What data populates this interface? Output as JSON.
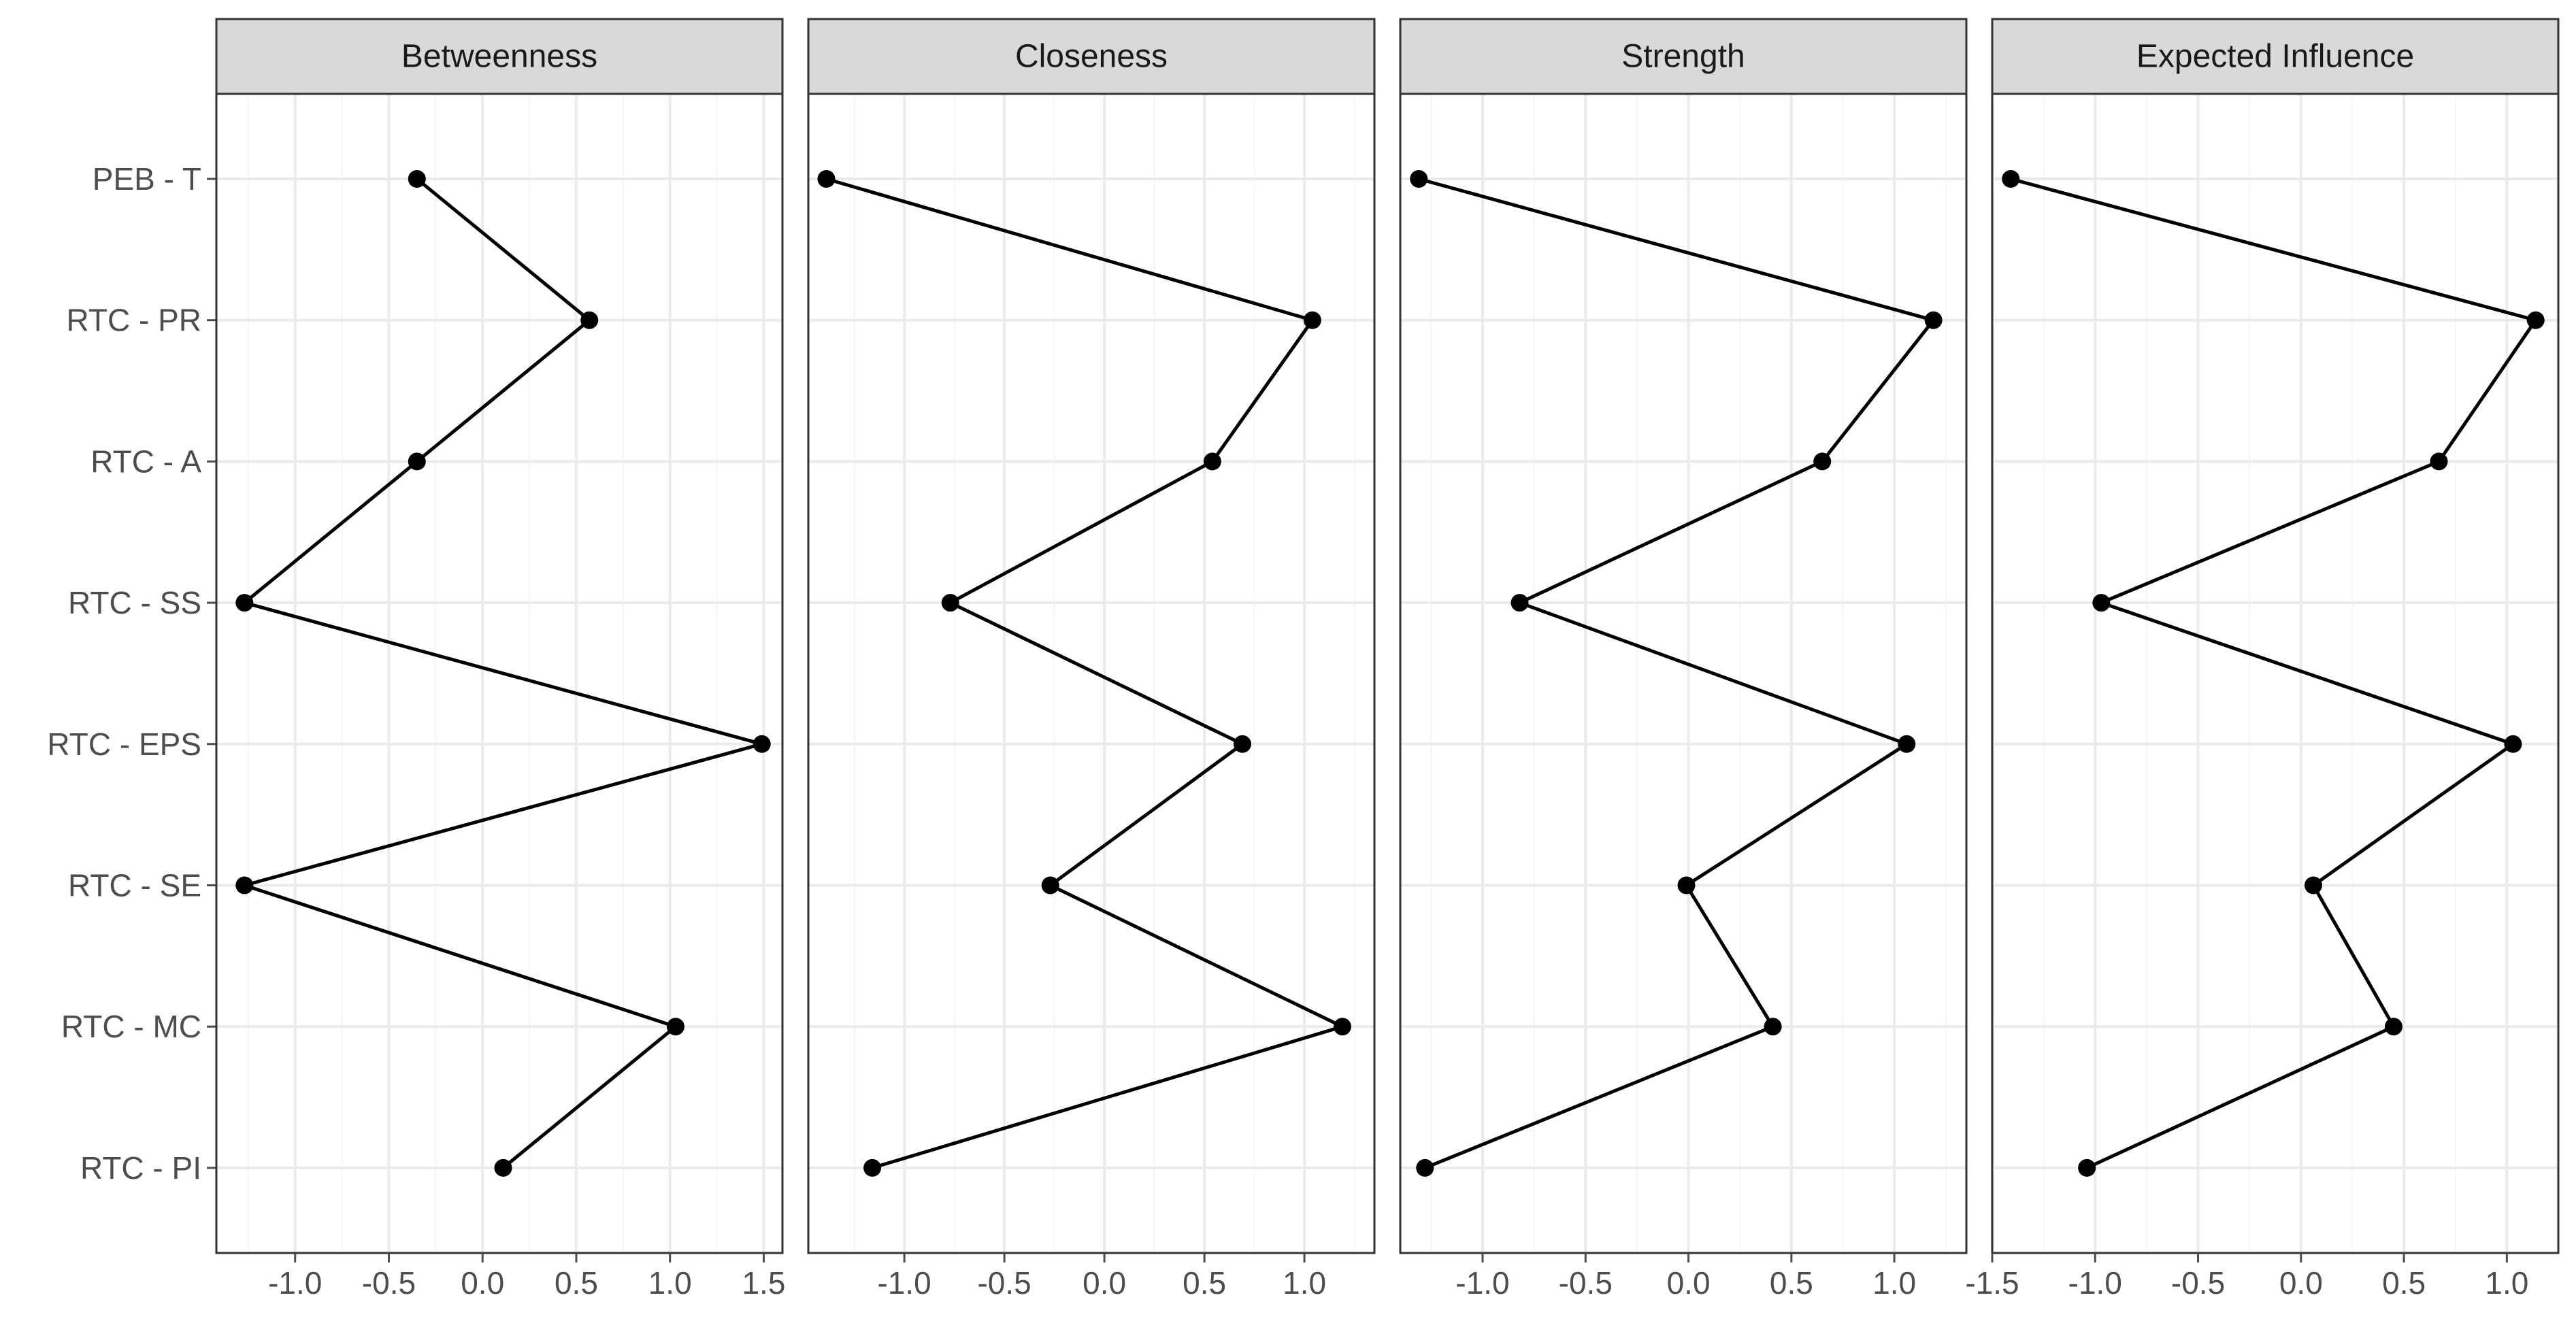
{
  "chart_data": {
    "type": "line",
    "orientation": "horizontal-values",
    "y_categories": [
      "PEB - T",
      "RTC - PR",
      "RTC - A",
      "RTC - SS",
      "RTC - EPS",
      "RTC - SE",
      "RTC - MC",
      "RTC - PI"
    ],
    "panels": [
      {
        "title": "Betweenness",
        "xlim": [
          -1.42,
          1.6
        ],
        "ticks": [
          -1.0,
          -0.5,
          0.0,
          0.5,
          1.0,
          1.5
        ],
        "tick_labels": [
          "-1.0",
          "-0.5",
          "0.0",
          "0.5",
          "1.0",
          "1.5"
        ],
        "values": [
          -0.35,
          0.57,
          -0.35,
          -1.27,
          1.49,
          -1.27,
          1.03,
          0.11
        ]
      },
      {
        "title": "Closeness",
        "xlim": [
          -1.48,
          1.35
        ],
        "ticks": [
          -1.0,
          -0.5,
          0.0,
          0.5,
          1.0
        ],
        "tick_labels": [
          "-1.0",
          "-0.5",
          "0.0",
          "0.5",
          "1.0"
        ],
        "values": [
          -1.39,
          1.04,
          0.54,
          -0.77,
          0.69,
          -0.27,
          1.19,
          -1.16
        ]
      },
      {
        "title": "Strength",
        "xlim": [
          -1.4,
          1.35
        ],
        "ticks": [
          -1.0,
          -0.5,
          0.0,
          0.5,
          1.0
        ],
        "tick_labels": [
          "-1.0",
          "-0.5",
          "0.0",
          "0.5",
          "1.0"
        ],
        "values": [
          -1.31,
          1.19,
          0.65,
          -0.82,
          1.06,
          -0.01,
          0.41,
          -1.28
        ]
      },
      {
        "title": "Expected Influence",
        "xlim": [
          -1.5,
          1.25
        ],
        "ticks": [
          -1.5,
          -1.0,
          -0.5,
          0.0,
          0.5,
          1.0
        ],
        "tick_labels": [
          "-1.5",
          "-1.0",
          "-0.5",
          "0.0",
          "0.5",
          "1.0"
        ],
        "values": [
          -1.41,
          1.14,
          0.67,
          -0.97,
          1.03,
          0.06,
          0.45,
          -1.04
        ]
      }
    ],
    "grid": true,
    "legend": "none",
    "colors": {
      "line": "#000000",
      "point": "#000000",
      "strip_fill": "#d9d9d9",
      "strip_border": "#333333",
      "panel_border": "#333333",
      "grid_major": "#ebebeb",
      "grid_minor": "#f5f5f5",
      "axis_text": "#4d4d4d"
    }
  }
}
